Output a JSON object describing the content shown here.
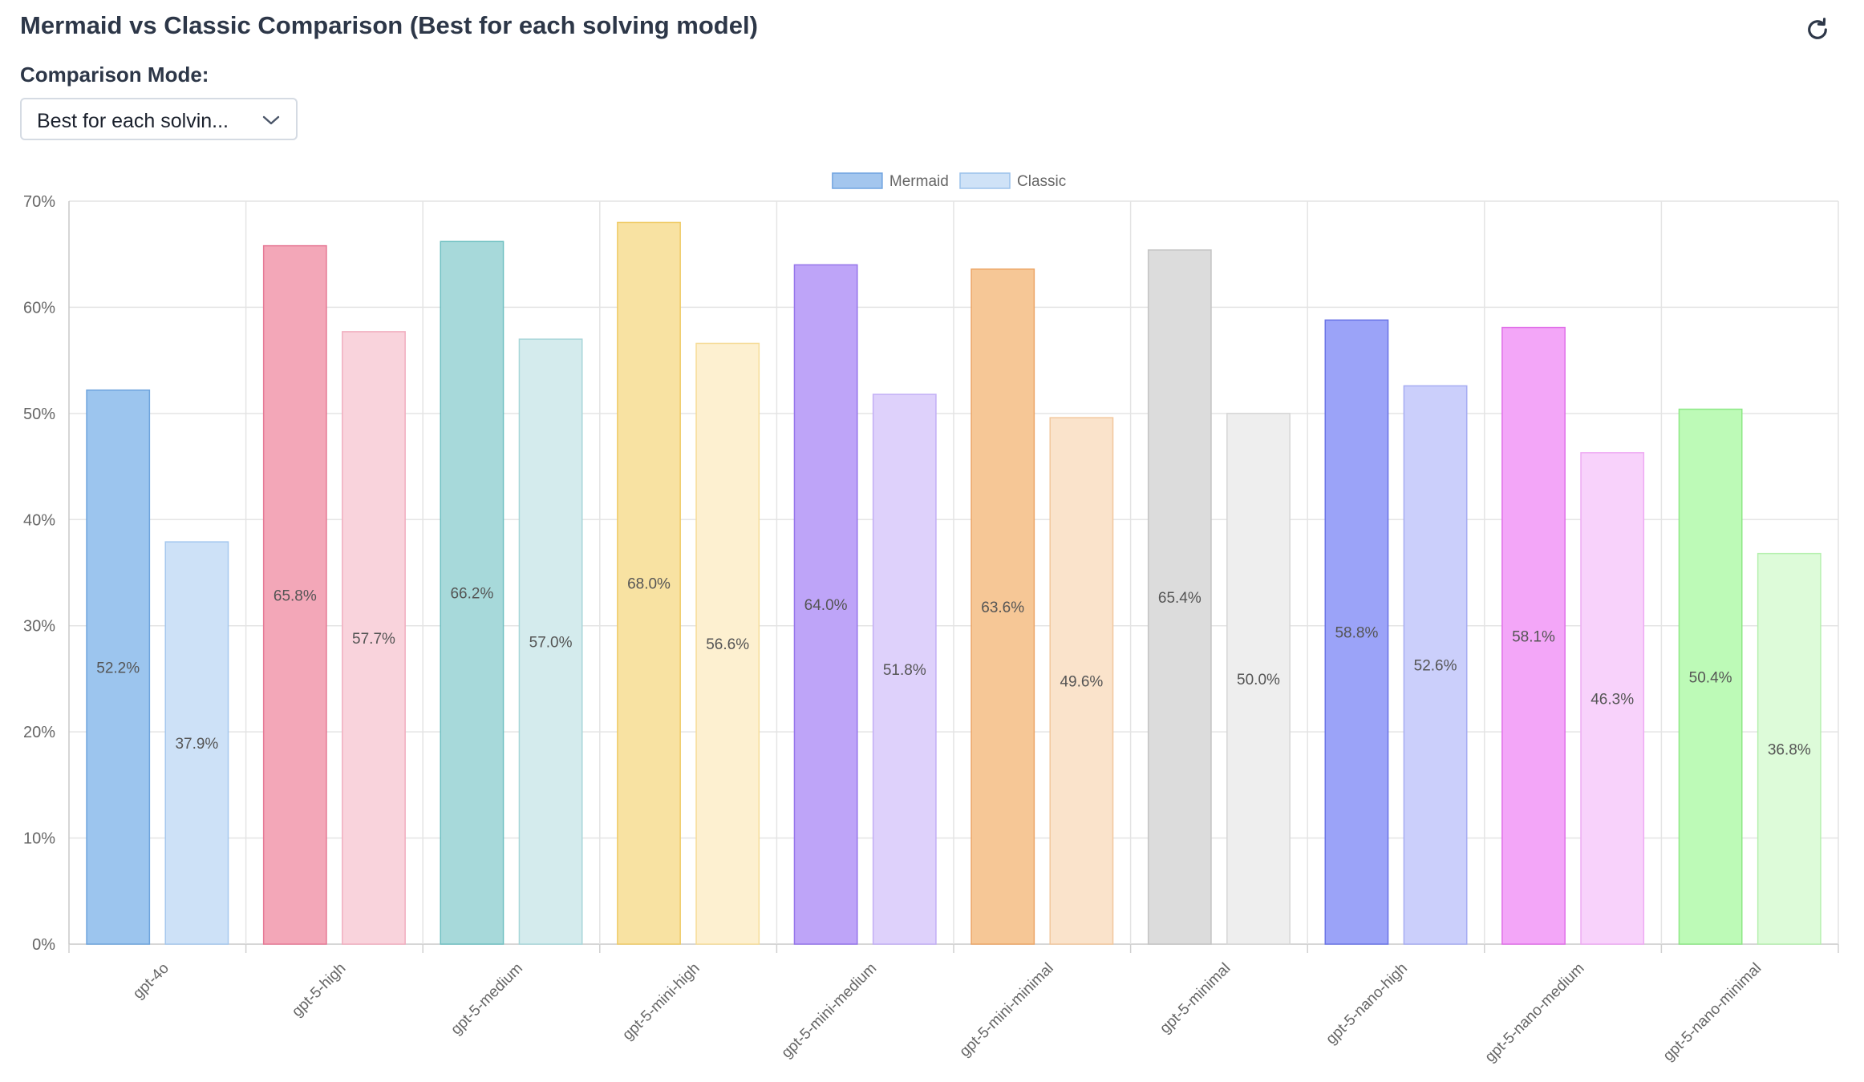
{
  "header": {
    "title": "Mermaid vs Classic Comparison (Best for each solving model)",
    "refresh_icon": "refresh-icon"
  },
  "controls": {
    "mode_label": "Comparison Mode:",
    "mode_value": "Best for each solvin...",
    "chevron_icon": "chevron-down-icon"
  },
  "chart_data": {
    "type": "bar",
    "title": "",
    "xlabel": "",
    "ylabel": "",
    "ylim": [
      0,
      70
    ],
    "yticks": [
      0,
      10,
      20,
      30,
      40,
      50,
      60,
      70
    ],
    "y_tick_suffix": "%",
    "grid": true,
    "legend_position": "top-center",
    "categories": [
      "gpt-4o",
      "gpt-5-high",
      "gpt-5-medium",
      "gpt-5-mini-high",
      "gpt-5-mini-medium",
      "gpt-5-mini-minimal",
      "gpt-5-minimal",
      "gpt-5-nano-high",
      "gpt-5-nano-medium",
      "gpt-5-nano-minimal"
    ],
    "series": [
      {
        "name": "Mermaid",
        "values": [
          52.2,
          65.8,
          66.2,
          68.0,
          64.0,
          63.6,
          65.4,
          58.8,
          58.1,
          50.4
        ],
        "labels": [
          "52.2%",
          "65.8%",
          "66.2%",
          "68.0%",
          "64.0%",
          "63.6%",
          "65.4%",
          "58.8%",
          "58.1%",
          "50.4%"
        ],
        "legend_fill": "#a3c6ee",
        "legend_stroke": "#6fa3e0"
      },
      {
        "name": "Classic",
        "values": [
          37.9,
          57.7,
          57.0,
          56.6,
          51.8,
          49.6,
          50.0,
          52.6,
          46.3,
          36.8
        ],
        "labels": [
          "37.9%",
          "57.7%",
          "57.0%",
          "56.6%",
          "51.8%",
          "49.6%",
          "50.0%",
          "52.6%",
          "46.3%",
          "36.8%"
        ],
        "legend_fill": "#cfe2f7",
        "legend_stroke": "#9cc2ec"
      }
    ],
    "bar_colors": [
      {
        "mermaid_fill": "#9cc5ee",
        "mermaid_stroke": "#6ea4dd",
        "classic_fill": "#cde1f7",
        "classic_stroke": "#a5c8ee"
      },
      {
        "mermaid_fill": "#f3a7b8",
        "mermaid_stroke": "#e67995",
        "classic_fill": "#f9d3dc",
        "classic_stroke": "#f1aebf"
      },
      {
        "mermaid_fill": "#a7d9da",
        "mermaid_stroke": "#6fc0c2",
        "classic_fill": "#d4ebed",
        "classic_stroke": "#a8d6d9"
      },
      {
        "mermaid_fill": "#f8e2a2",
        "mermaid_stroke": "#efcb66",
        "classic_fill": "#fdf0d0",
        "classic_stroke": "#f6dc98"
      },
      {
        "mermaid_fill": "#bea4f8",
        "mermaid_stroke": "#9574ea",
        "classic_fill": "#ded1fb",
        "classic_stroke": "#c2aef5"
      },
      {
        "mermaid_fill": "#f6c796",
        "mermaid_stroke": "#eca566",
        "classic_fill": "#fae3cb",
        "classic_stroke": "#f2c79d"
      },
      {
        "mermaid_fill": "#dcdcdc",
        "mermaid_stroke": "#c4c4c4",
        "classic_fill": "#eeeeee",
        "classic_stroke": "#d6d6d6"
      },
      {
        "mermaid_fill": "#9ba3f8",
        "mermaid_stroke": "#6a74e6",
        "classic_fill": "#cbcffb",
        "classic_stroke": "#a6acf2"
      },
      {
        "mermaid_fill": "#f3a6f8",
        "mermaid_stroke": "#e06ee8",
        "classic_fill": "#f8d2fb",
        "classic_stroke": "#eeaaf3"
      },
      {
        "mermaid_fill": "#bdfab7",
        "mermaid_stroke": "#8de885",
        "classic_fill": "#ddfbd9",
        "classic_stroke": "#b6f0af"
      }
    ]
  }
}
